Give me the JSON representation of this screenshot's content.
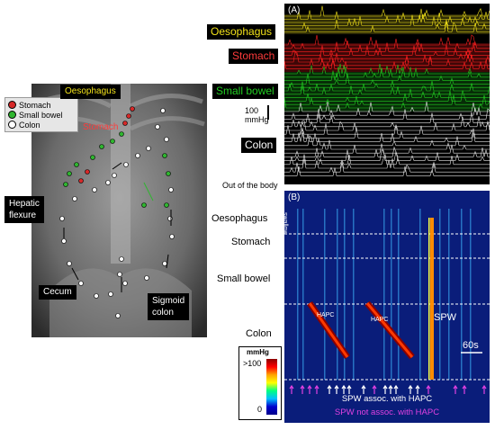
{
  "left_panel": {
    "oesophagus_label": "Oesophagus",
    "stomach_label": "Stomach",
    "hepatic_label_line1": "Hepatic",
    "hepatic_label_line2": "flexure",
    "cecum_label": "Cecum",
    "sigmoid_label_line1": "Sigmoid",
    "sigmoid_label_line2": "colon",
    "legend": [
      {
        "label": "Stomach",
        "color": "#d62828"
      },
      {
        "label": "Small bowel",
        "color": "#2fb52f"
      },
      {
        "label": "Colon",
        "color": "#ffffff"
      }
    ]
  },
  "panel_a": {
    "letter": "(A)",
    "oesophagus": "Oesophagus",
    "stomach": "Stomach",
    "small_bowel": "Small bowel",
    "scale_value": "100",
    "scale_unit": "mmHg",
    "colon": "Colon",
    "out_of_body": "Out of the body",
    "colors": {
      "oesophagus": "#f2e21a",
      "stomach": "#ff2020",
      "small_bowel": "#22cc22",
      "colon": "#e6e6e6"
    }
  },
  "panel_b": {
    "letter": "(B)",
    "swallow": "swallow",
    "regions": [
      "Oesophagus",
      "Stomach",
      "Small bowel",
      "Colon"
    ],
    "hapc_label_1": "HAPC",
    "hapc_label_2": "HAPC",
    "spw_label": "SPW",
    "time_scale": "60s",
    "colorbar_title": "mmHg",
    "colorbar_max": ">100",
    "colorbar_min": "0",
    "footer_white": "SPW assoc. with HAPC",
    "footer_magenta": "SPW not assoc. with HAPC"
  }
}
